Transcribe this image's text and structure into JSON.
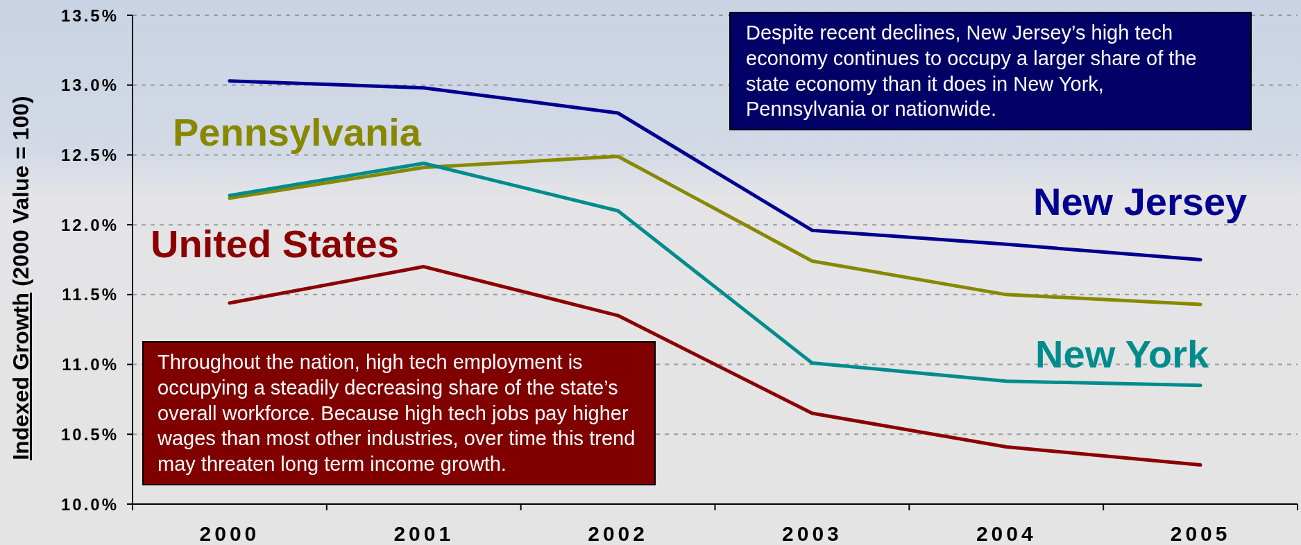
{
  "chart_data": {
    "type": "line",
    "ylabel": "Indexed Growth (2000 Value = 100)",
    "categories": [
      "2000",
      "2001",
      "2002",
      "2003",
      "2004",
      "2005"
    ],
    "series": [
      {
        "name": "New Jersey",
        "color": "#000090",
        "values": [
          13.03,
          12.98,
          12.8,
          11.96,
          11.86,
          11.75
        ]
      },
      {
        "name": "Pennsylvania",
        "color": "#888800",
        "values": [
          12.19,
          12.41,
          12.49,
          11.74,
          11.5,
          11.43
        ]
      },
      {
        "name": "New York",
        "color": "#008c8c",
        "values": [
          12.21,
          12.44,
          12.1,
          11.01,
          10.88,
          10.85
        ]
      },
      {
        "name": "United States",
        "color": "#8b0000",
        "values": [
          11.44,
          11.7,
          11.35,
          10.65,
          10.41,
          10.28
        ]
      }
    ],
    "ylim": [
      10,
      13.5
    ],
    "yticks": [
      {
        "value": 10,
        "label": "10.0%"
      },
      {
        "value": 10.5,
        "label": "10.5%"
      },
      {
        "value": 11,
        "label": "11.0%"
      },
      {
        "value": 11.5,
        "label": "11.5%"
      },
      {
        "value": 12,
        "label": "12.0%"
      },
      {
        "value": 12.5,
        "label": "12.5%"
      },
      {
        "value": 13,
        "label": "13.0%"
      },
      {
        "value": 13.5,
        "label": "13.5%"
      }
    ],
    "grid": "y",
    "legend": false,
    "marker": "none",
    "line_style": "solid",
    "annotations": [
      "Despite recent declines, New Jersey’s high tech economy continues to occupy a larger share of the state economy than it does in New York, Pennsylvania or nationwide.",
      "Throughout the nation, high tech employment is occupying a steadily decreasing share of the state’s overall workforce. Because high tech jobs pay higher wages than most other industries, over time this trend may threaten long term income growth."
    ]
  }
}
